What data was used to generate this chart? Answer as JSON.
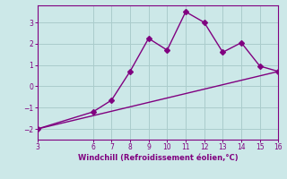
{
  "xlabel": "Windchill (Refroidissement éolien,°C)",
  "xlim": [
    3,
    16
  ],
  "ylim": [
    -2.5,
    3.8
  ],
  "xticks": [
    3,
    6,
    7,
    8,
    9,
    10,
    11,
    12,
    13,
    14,
    15,
    16
  ],
  "yticks": [
    -2,
    -1,
    0,
    1,
    2,
    3
  ],
  "line1_x": [
    3,
    6,
    7,
    8,
    9,
    10,
    11,
    12,
    13,
    14,
    15,
    16
  ],
  "line1_y": [
    -2.0,
    -1.2,
    -0.65,
    0.7,
    2.25,
    1.7,
    3.5,
    3.0,
    1.6,
    2.05,
    0.95,
    0.7
  ],
  "line2_x": [
    3,
    16
  ],
  "line2_y": [
    -2.0,
    0.7
  ],
  "line_color": "#800080",
  "bg_color": "#cce8e8",
  "grid_color": "#aacccc",
  "tick_color": "#800080",
  "label_color": "#800080",
  "marker": "D",
  "marker_size": 3,
  "line_width": 1.0
}
